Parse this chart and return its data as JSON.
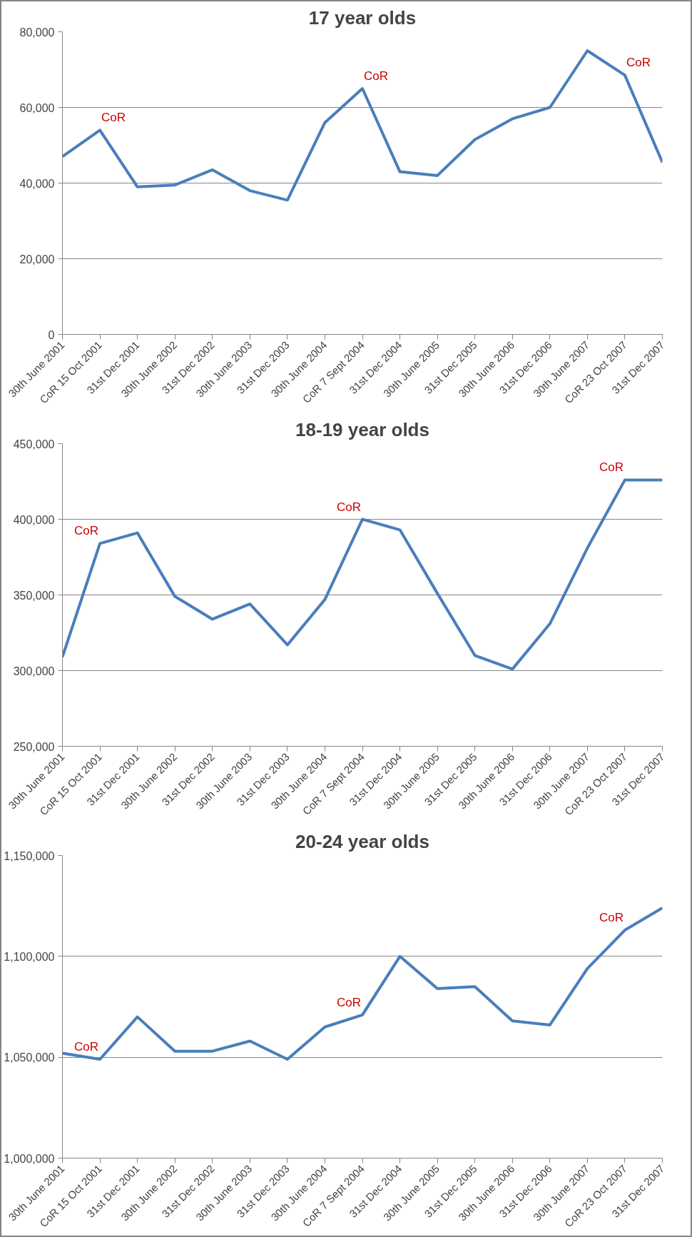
{
  "chart_data": [
    {
      "type": "line",
      "title": "17 year olds",
      "categories": [
        "30th June 2001",
        "CoR 15 Oct 2001",
        "31st Dec 2001",
        "30th June 2002",
        "31st Dec 2002",
        "30th June 2003",
        "31st Dec 2003",
        "30th June 2004",
        "CoR 7 Sept 2004",
        "31st Dec 2004",
        "30th June 2005",
        "31st Dec 2005",
        "30th June 2006",
        "31st Dec 2006",
        "30th June 2007",
        "CoR 23 Oct 2007",
        "31st Dec 2007"
      ],
      "series": [
        {
          "color": "#4a7ebb",
          "values": [
            47000,
            54000,
            39000,
            39500,
            43500,
            38000,
            35500,
            56000,
            65000,
            43000,
            42000,
            51500,
            57000,
            60000,
            75000,
            68500,
            45500
          ]
        }
      ],
      "ylim": [
        0,
        80000
      ],
      "yticks": [
        {
          "value": 0,
          "label": "0"
        },
        {
          "value": 20000,
          "label": "20,000"
        },
        {
          "value": 40000,
          "label": "40,000"
        },
        {
          "value": 60000,
          "label": "60,000"
        },
        {
          "value": 80000,
          "label": "80,000"
        }
      ],
      "grid": "y",
      "marker": "none",
      "line_style": "solid",
      "annotations": [
        {
          "text": "CoR",
          "x": "CoR 15 Oct 2001",
          "y": 54000
        },
        {
          "text": "CoR",
          "x": "CoR 7 Sept 2004",
          "y": 65000
        },
        {
          "text": "CoR",
          "x": "CoR 23 Oct 2007",
          "y": 68500
        }
      ]
    },
    {
      "type": "line",
      "title": "18-19 year olds",
      "categories": [
        "30th June 2001",
        "CoR 15 Oct 2001",
        "31st Dec 2001",
        "30th June 2002",
        "31st Dec 2002",
        "30th June 2003",
        "31st Dec 2003",
        "30th June 2004",
        "CoR 7 Sept 2004",
        "31st Dec 2004",
        "30th June 2005",
        "31st Dec 2005",
        "30th June 2006",
        "31st Dec 2006",
        "30th June 2007",
        "CoR 23 Oct 2007",
        "31st Dec 2007"
      ],
      "series": [
        {
          "color": "#4a7ebb",
          "values": [
            309000,
            384000,
            391000,
            349000,
            334000,
            344000,
            317000,
            347000,
            400000,
            393000,
            351000,
            310000,
            301000,
            331000,
            381000,
            426000,
            426000
          ]
        }
      ],
      "ylim": [
        250000,
        450000
      ],
      "yticks": [
        {
          "value": 250000,
          "label": "250,000"
        },
        {
          "value": 300000,
          "label": "300,000"
        },
        {
          "value": 350000,
          "label": "350,000"
        },
        {
          "value": 400000,
          "label": "400,000"
        },
        {
          "value": 450000,
          "label": "450,000"
        }
      ],
      "grid": "y",
      "marker": "none",
      "line_style": "solid",
      "annotations": [
        {
          "text": "CoR",
          "x": "CoR 15 Oct 2001",
          "y": 384000
        },
        {
          "text": "CoR",
          "x": "CoR 7 Sept 2004",
          "y": 400000
        },
        {
          "text": "CoR",
          "x": "CoR 23 Oct 2007",
          "y": 426000
        }
      ]
    },
    {
      "type": "line",
      "title": "20-24 year olds",
      "categories": [
        "30th June 2001",
        "CoR 15 Oct 2001",
        "31st Dec 2001",
        "30th June 2002",
        "31st Dec 2002",
        "30th June 2003",
        "31st Dec 2003",
        "30th June 2004",
        "CoR 7 Sept 2004",
        "31st Dec 2004",
        "30th June 2005",
        "31st Dec 2005",
        "30th June 2006",
        "31st Dec 2006",
        "30th June 2007",
        "CoR 23 Oct 2007",
        "31st Dec 2007"
      ],
      "series": [
        {
          "color": "#4a7ebb",
          "values": [
            1052000,
            1049000,
            1070000,
            1053000,
            1053000,
            1058000,
            1049000,
            1065000,
            1071000,
            1100000,
            1084000,
            1085000,
            1068000,
            1066000,
            1094000,
            1113000,
            1124000
          ]
        }
      ],
      "ylim": [
        1000000,
        1150000
      ],
      "yticks": [
        {
          "value": 1000000,
          "label": "1,000,000"
        },
        {
          "value": 1050000,
          "label": "1,050,000"
        },
        {
          "value": 1100000,
          "label": "1,100,000"
        },
        {
          "value": 1150000,
          "label": "1,150,000"
        }
      ],
      "grid": "y",
      "marker": "none",
      "line_style": "solid",
      "annotations": [
        {
          "text": "CoR",
          "x": "CoR 15 Oct 2001",
          "y": 1049000
        },
        {
          "text": "CoR",
          "x": "CoR 7 Sept 2004",
          "y": 1071000
        },
        {
          "text": "CoR",
          "x": "CoR 23 Oct 2007",
          "y": 1113000
        }
      ]
    }
  ]
}
